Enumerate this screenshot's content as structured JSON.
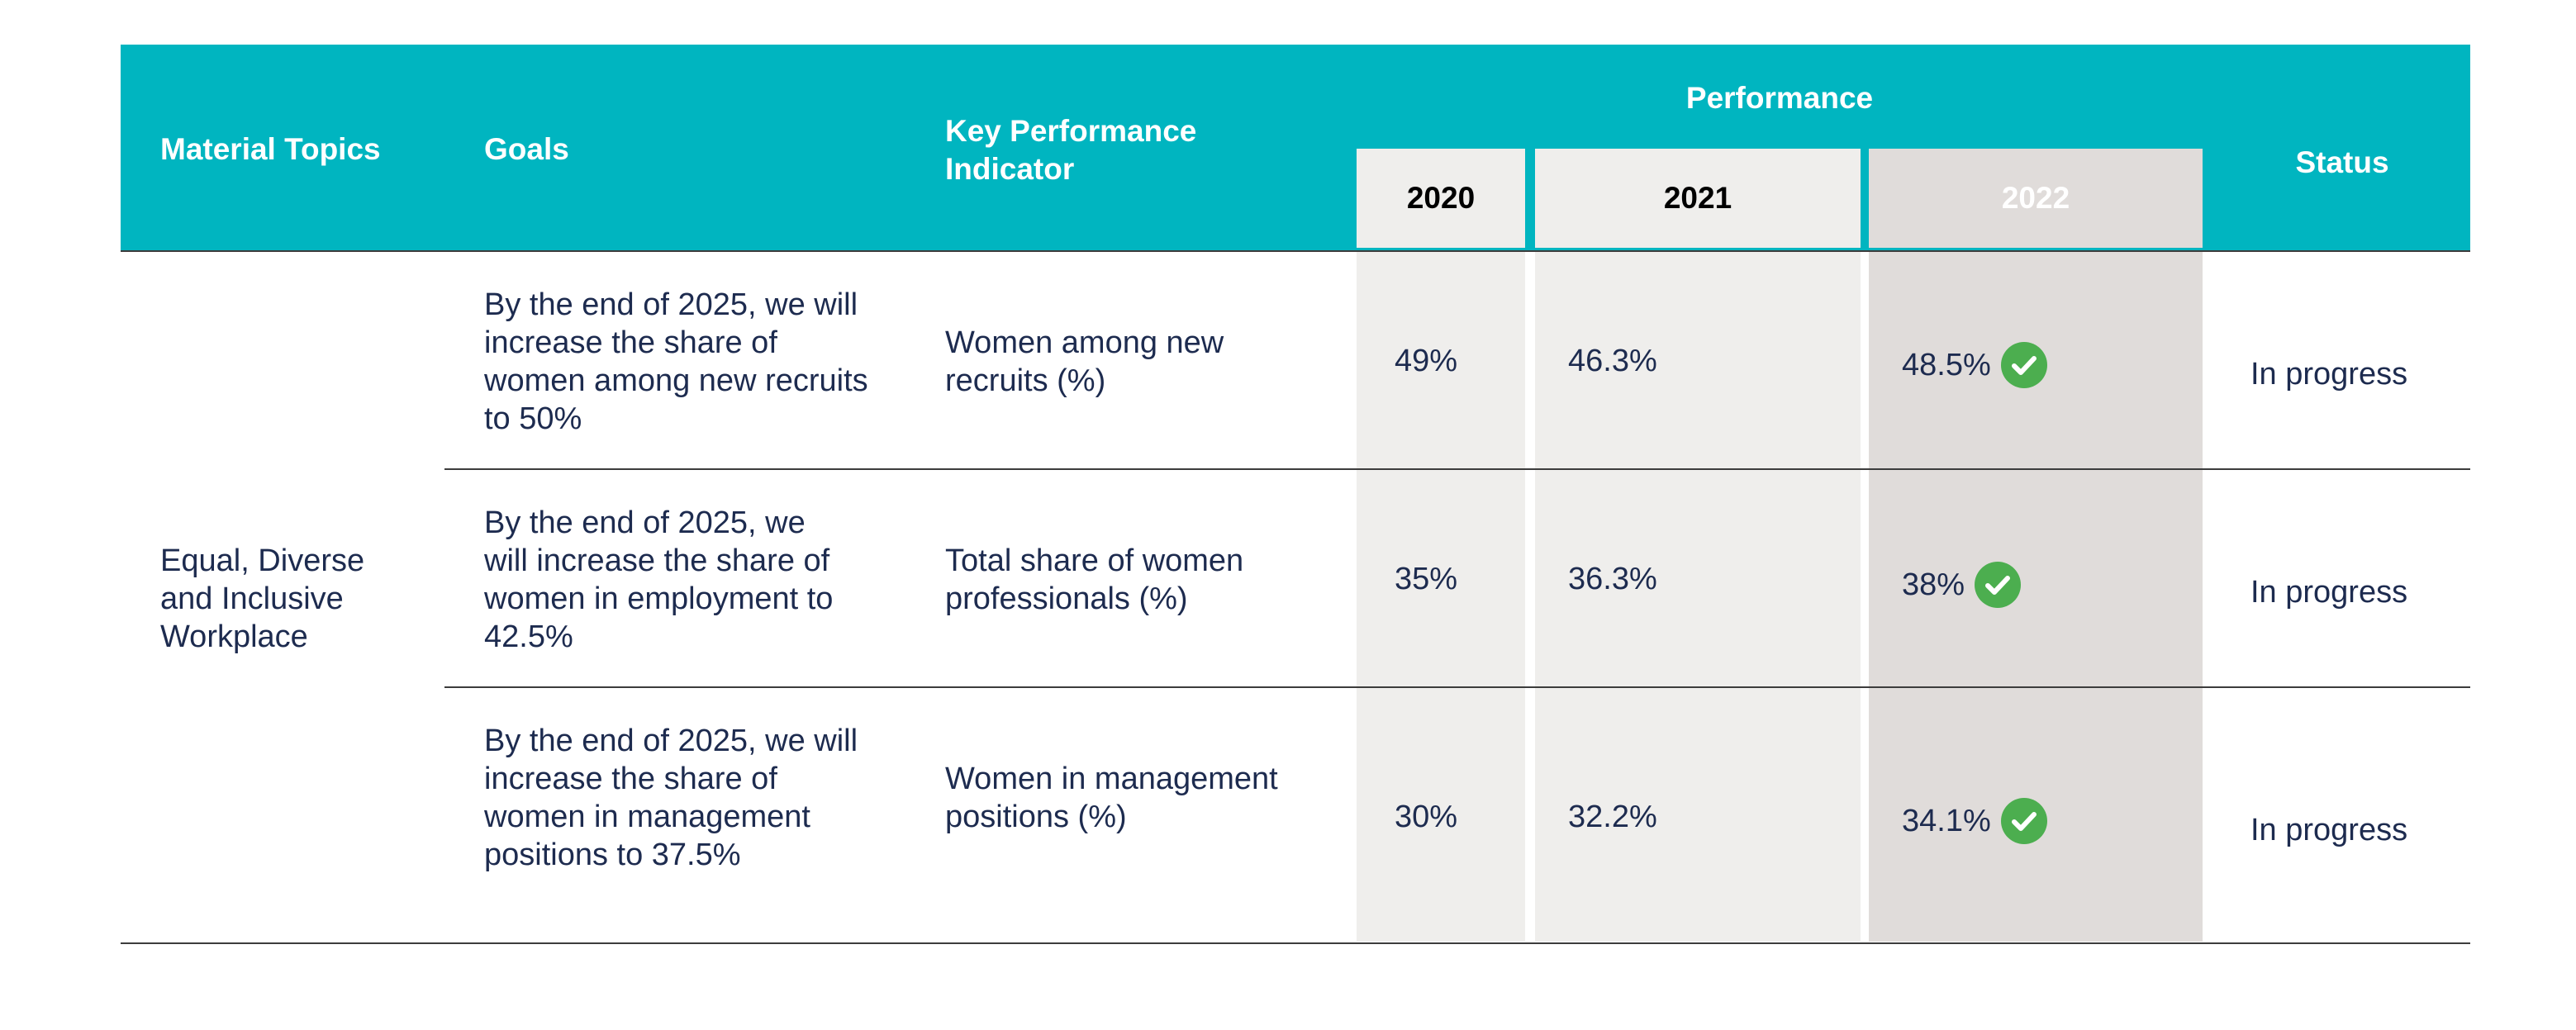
{
  "header": {
    "material_topics": "Material Topics",
    "goals": "Goals",
    "kpi": "Key Performance Indicator",
    "performance": "Performance",
    "year_2020": "2020",
    "year_2021": "2021",
    "year_2022": "2022",
    "status": "Status"
  },
  "material_topic": "Equal, Diverse and Inclusive Workplace",
  "rows": [
    {
      "goal": "By the end of 2025, we will increase the share of women among new recruits to 50%",
      "kpi": "Women among new recruits (%)",
      "v2020": "49%",
      "v2021": "46.3%",
      "v2022": "48.5%",
      "status": "In progress"
    },
    {
      "goal": "By the end of 2025, we will increase the share of women in employment to 42.5%",
      "kpi": "Total share of women professionals (%)",
      "v2020": "35%",
      "v2021": "36.3%",
      "v2022": "38%",
      "status": "In progress"
    },
    {
      "goal": "By the end of 2025, we will increase the share of women in management positions to 37.5%",
      "kpi": "Women in management positions (%)",
      "v2020": "30%",
      "v2021": "32.2%",
      "v2022": "34.1%",
      "status": "In progress"
    }
  ],
  "colors": {
    "header": "#00b5c0",
    "text": "#1d2b4f",
    "check": "#4cae4f"
  },
  "icons": {
    "achieved": "check-circle-icon"
  }
}
